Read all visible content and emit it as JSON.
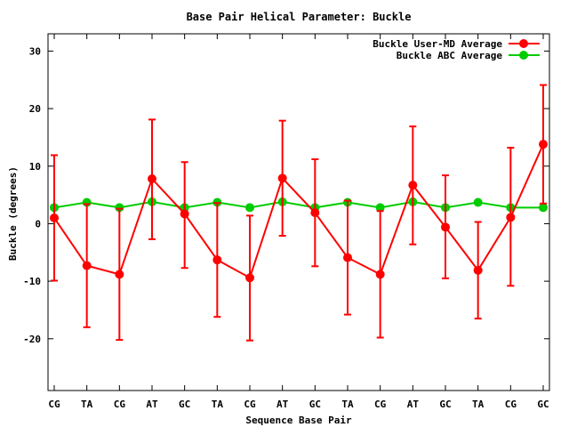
{
  "chart_data": {
    "type": "line",
    "title": "Base Pair Helical Parameter: Buckle",
    "xlabel": "Sequence Base Pair",
    "ylabel": "Buckle (degrees)",
    "categories": [
      "CG",
      "TA",
      "CG",
      "AT",
      "GC",
      "TA",
      "CG",
      "AT",
      "GC",
      "TA",
      "CG",
      "AT",
      "GC",
      "TA",
      "CG",
      "GC"
    ],
    "ylim": [
      -29,
      33
    ],
    "yticks": [
      -20,
      -10,
      0,
      10,
      20,
      30
    ],
    "grid": false,
    "legend_position": "top-right",
    "series": [
      {
        "name": "Buckle User-MD Average",
        "color": "#ff0000",
        "values": [
          1.0,
          -7.3,
          -8.8,
          7.8,
          1.7,
          -6.3,
          -9.4,
          7.9,
          1.9,
          -5.9,
          -8.8,
          6.7,
          -0.6,
          -8.1,
          1.1,
          13.8
        ],
        "error_low": [
          -9.9,
          -18.0,
          -20.2,
          -2.7,
          -7.7,
          -16.2,
          -20.3,
          -2.1,
          -7.4,
          -15.8,
          -19.8,
          -3.6,
          -9.5,
          -16.5,
          -10.8,
          3.5
        ],
        "error_high": [
          11.9,
          3.4,
          2.6,
          18.1,
          10.7,
          3.6,
          1.4,
          17.9,
          11.2,
          4.0,
          2.2,
          16.9,
          8.4,
          0.3,
          13.2,
          24.1
        ]
      },
      {
        "name": "Buckle ABC Average",
        "color": "#00cc00",
        "values": [
          2.8,
          3.7,
          2.8,
          3.8,
          2.8,
          3.7,
          2.8,
          3.8,
          2.8,
          3.7,
          2.8,
          3.8,
          2.8,
          3.7,
          2.8,
          2.8
        ]
      }
    ]
  }
}
